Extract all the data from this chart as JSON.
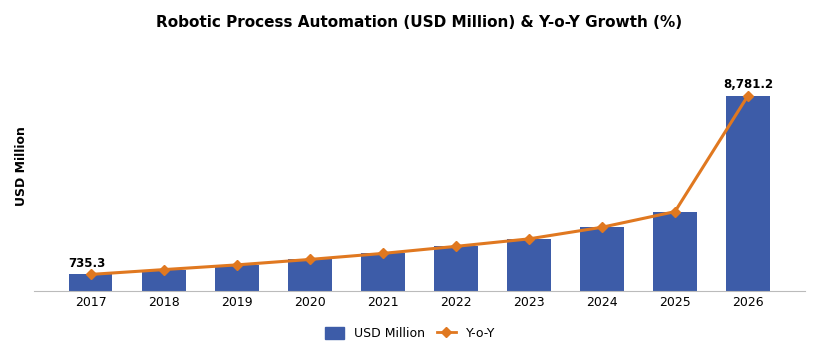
{
  "title": "Robotic Process Automation (USD Million) & Y-o-Y Growth (%)",
  "years": [
    2017,
    2018,
    2019,
    2020,
    2021,
    2022,
    2023,
    2024,
    2025,
    2026
  ],
  "usd_values": [
    735.3,
    952.0,
    1164.0,
    1409.0,
    1680.0,
    1997.0,
    2334.0,
    2857.0,
    3560.0,
    8781.2
  ],
  "yoy_values": [
    735.3,
    952.0,
    1164.0,
    1409.0,
    1680.0,
    1997.0,
    2334.0,
    2857.0,
    3560.0,
    8781.2
  ],
  "bar_color": "#3D5CA8",
  "line_color": "#E07820",
  "ylabel": "USD Million",
  "annotation_first": "735.3",
  "annotation_last": "8,781.2",
  "legend_bar_label": "USD Million",
  "legend_line_label": "Y-o-Y",
  "background_color": "#FFFFFF",
  "title_fontsize": 11,
  "axis_fontsize": 9,
  "border_color": "#CCCCCC"
}
